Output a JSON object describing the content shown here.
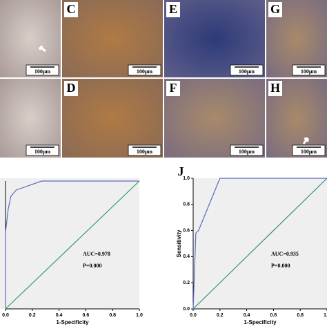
{
  "panels": [
    {
      "label": "C",
      "scale": "100μm"
    },
    {
      "label": "E",
      "scale": "100μm"
    },
    {
      "label": "G",
      "scale": "100μm"
    },
    {
      "label": "D",
      "scale": "100μm"
    },
    {
      "label": "F",
      "scale": "100μm"
    },
    {
      "label": "H",
      "scale": "100μm"
    },
    {
      "scale": "100μm"
    },
    {
      "scale": "100μm"
    }
  ],
  "chart_data": [
    {
      "type": "line",
      "xlabel": "1-Specificity",
      "annotations": [
        "AUC=0.978",
        "P=0.000"
      ],
      "xlim": [
        0,
        1
      ],
      "ylim": [
        0,
        1
      ],
      "xticks": [
        {
          "value": 0,
          "label": "0.0"
        },
        {
          "value": 0.2,
          "label": "0.2"
        },
        {
          "value": 0.4,
          "label": "0.4"
        },
        {
          "value": 0.6,
          "label": "0.6"
        },
        {
          "value": 0.8,
          "label": "0.8"
        },
        {
          "value": 1,
          "label": "1.0"
        }
      ],
      "series": [
        {
          "color": "#5b6bb8",
          "x": [
            0,
            0,
            0.02,
            0.04,
            0.08,
            0.27,
            1
          ],
          "values": [
            0,
            0.6,
            0.78,
            0.88,
            0.93,
            1,
            1
          ]
        },
        {
          "color": "#2e9b6f",
          "x": [
            0,
            1
          ],
          "values": [
            0,
            1
          ]
        }
      ]
    },
    {
      "type": "line",
      "title": "J",
      "xlabel": "1-Specificity",
      "ylabel": "Sensitivity",
      "annotations": [
        "AUC=0.935",
        "P=0.000"
      ],
      "xlim": [
        0,
        1
      ],
      "ylim": [
        0,
        1
      ],
      "xticks": [
        {
          "value": 0,
          "label": "0.0"
        },
        {
          "value": 0.2,
          "label": "0.2"
        },
        {
          "value": 0.4,
          "label": "0.4"
        },
        {
          "value": 0.6,
          "label": "0.6"
        },
        {
          "value": 0.8,
          "label": "0.8"
        },
        {
          "value": 1,
          "label": "1.0"
        }
      ],
      "yticks": [
        {
          "value": 0,
          "label": "0.0"
        },
        {
          "value": 0.2,
          "label": "0.2"
        },
        {
          "value": 0.4,
          "label": "0.4"
        },
        {
          "value": 0.6,
          "label": "0.6"
        },
        {
          "value": 0.8,
          "label": "0.8"
        },
        {
          "value": 1,
          "label": "1.0"
        }
      ],
      "series": [
        {
          "color": "#5b6bb8",
          "x": [
            0,
            0.02,
            0.04,
            0.2,
            1
          ],
          "values": [
            0,
            0.58,
            0.6,
            1,
            1
          ]
        },
        {
          "color": "#2e9b6f",
          "x": [
            0,
            1
          ],
          "values": [
            0,
            1
          ]
        }
      ]
    }
  ]
}
